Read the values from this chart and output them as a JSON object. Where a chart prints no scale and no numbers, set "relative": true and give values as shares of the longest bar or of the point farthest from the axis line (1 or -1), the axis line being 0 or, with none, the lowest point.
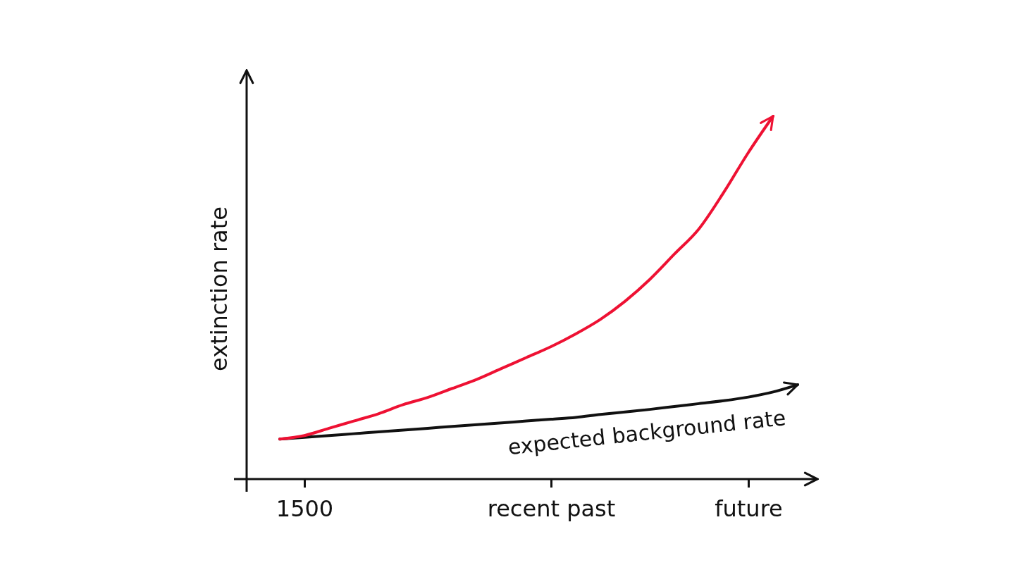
{
  "chart_data": {
    "type": "line",
    "ylabel": "extinction rate",
    "relative": true,
    "tick_labels": "x",
    "marker": "none",
    "line_style": "solid",
    "categories": [
      null,
      "1500",
      null,
      null,
      null,
      null,
      null,
      null,
      null,
      null,
      null,
      "recent past",
      null,
      null,
      null,
      null,
      null,
      null,
      null,
      "future",
      null,
      null
    ],
    "series": [
      {
        "color": "#ee1133",
        "values": [
          0.11,
          0.12,
          0.14,
          0.16,
          0.18,
          0.205,
          0.225,
          0.25,
          0.275,
          0.305,
          0.335,
          0.365,
          0.4,
          0.44,
          0.49,
          0.55,
          0.62,
          0.69,
          0.79,
          0.9,
          1.0,
          null
        ]
      },
      {
        "name": "expected background rate",
        "color": "#111111",
        "values": [
          0.11,
          0.115,
          0.12,
          0.125,
          0.13,
          0.135,
          0.14,
          0.145,
          0.15,
          0.155,
          0.16,
          0.165,
          0.17,
          0.178,
          0.185,
          0.192,
          0.2,
          0.208,
          0.216,
          0.226,
          0.24,
          0.26
        ]
      }
    ]
  }
}
